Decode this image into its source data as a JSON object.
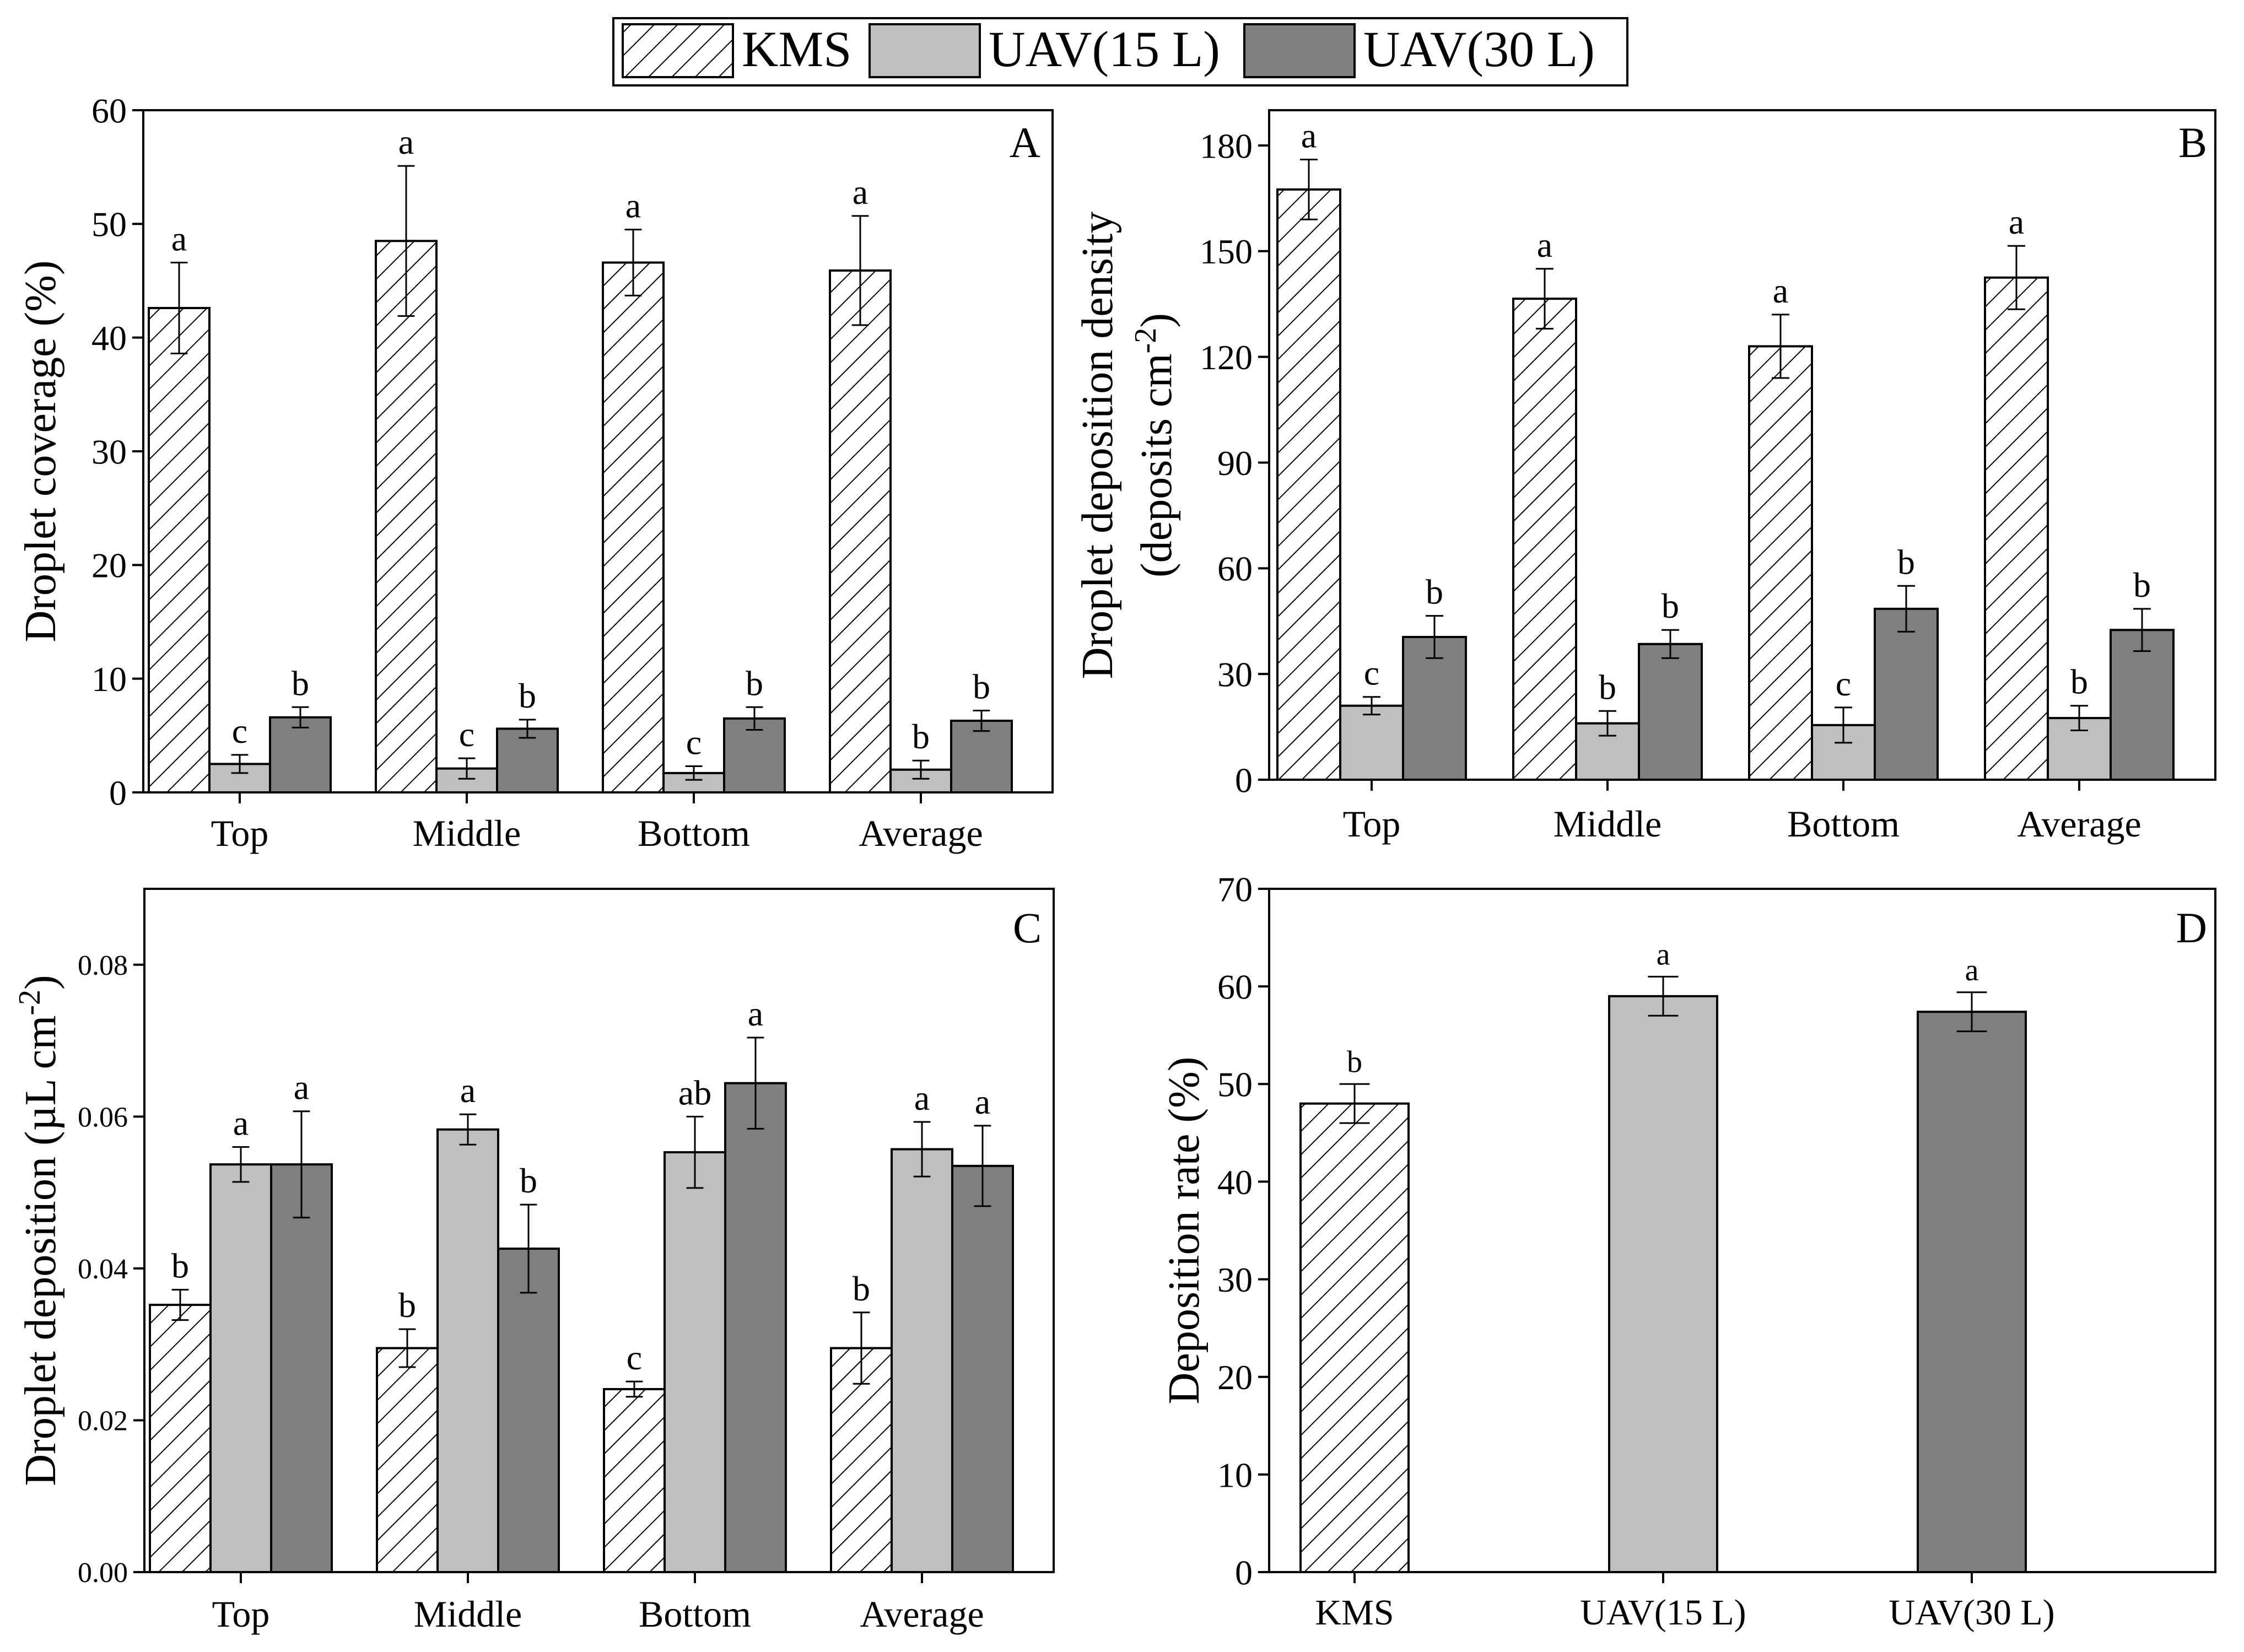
{
  "legend": {
    "entries": [
      {
        "name": "KMS",
        "pattern": "hatch",
        "color": "#ffffff"
      },
      {
        "name": "UAV(15 L)",
        "pattern": "solid",
        "color": "#bfbfbf"
      },
      {
        "name": "UAV(30 L)",
        "pattern": "solid",
        "color": "#7f7f7f"
      }
    ]
  },
  "colors": {
    "kms_fill": "#ffffff",
    "uav15": "#bfbfbf",
    "uav30": "#7f7f7f",
    "stroke": "#000000"
  },
  "chart_data": [
    {
      "panel": "A",
      "type": "bar",
      "ylabel": "Droplet coverage (%)",
      "ylim": [
        0,
        60
      ],
      "yticks": [
        0,
        10,
        20,
        30,
        40,
        50,
        60
      ],
      "ytick_labels": [
        "0",
        "10",
        "20",
        "30",
        "40",
        "50",
        "60"
      ],
      "categories": [
        "Top",
        "Middle",
        "Bottom",
        "Average"
      ],
      "series": [
        {
          "name": "KMS",
          "values": [
            42.6,
            48.5,
            46.6,
            45.9
          ],
          "errors": [
            4.0,
            6.6,
            2.9,
            4.8
          ],
          "letters": [
            "a",
            "a",
            "a",
            "a"
          ]
        },
        {
          "name": "UAV(15 L)",
          "values": [
            2.5,
            2.1,
            1.7,
            2.0
          ],
          "errors": [
            0.8,
            0.9,
            0.6,
            0.8
          ],
          "letters": [
            "c",
            "c",
            "c",
            "b"
          ]
        },
        {
          "name": "UAV(30 L)",
          "values": [
            6.6,
            5.6,
            6.5,
            6.3
          ],
          "errors": [
            0.9,
            0.8,
            1.0,
            0.9
          ],
          "letters": [
            "b",
            "b",
            "b",
            "b"
          ]
        }
      ]
    },
    {
      "panel": "B",
      "type": "bar",
      "ylabel_line1": "Droplet deposition density",
      "ylabel_line2": "(deposits cm",
      "ylabel_line2_sup": "-2",
      "ylabel_line2_end": ")",
      "ylim": [
        0,
        190
      ],
      "yticks": [
        0,
        30,
        60,
        90,
        120,
        150,
        180
      ],
      "ytick_labels": [
        "0",
        "30",
        "60",
        "90",
        "120",
        "150",
        "180"
      ],
      "categories": [
        "Top",
        "Middle",
        "Bottom",
        "Average"
      ],
      "series": [
        {
          "name": "KMS",
          "values": [
            167.5,
            136.5,
            123.0,
            142.5
          ],
          "errors": [
            8.5,
            8.5,
            9.0,
            9.0
          ],
          "letters": [
            "a",
            "a",
            "a",
            "a"
          ]
        },
        {
          "name": "UAV(15 L)",
          "values": [
            21.0,
            16.0,
            15.5,
            17.5
          ],
          "errors": [
            2.5,
            3.5,
            5.0,
            3.5
          ],
          "letters": [
            "c",
            "b",
            "c",
            "b"
          ]
        },
        {
          "name": "UAV(30 L)",
          "values": [
            40.5,
            38.5,
            48.5,
            42.5
          ],
          "errors": [
            6.0,
            4.0,
            6.5,
            6.0
          ],
          "letters": [
            "b",
            "b",
            "b",
            "b"
          ]
        }
      ]
    },
    {
      "panel": "C",
      "type": "bar",
      "ylabel": "Droplet deposition (µL cm",
      "ylabel_sup": "-2",
      "ylabel_end": ")",
      "ylim": [
        0,
        0.09
      ],
      "yticks": [
        0,
        0.02,
        0.04,
        0.06,
        0.08
      ],
      "ytick_labels": [
        "0.00",
        "0.02",
        "0.04",
        "0.06",
        "0.08"
      ],
      "categories": [
        "Top",
        "Middle",
        "Bottom",
        "Average"
      ],
      "series": [
        {
          "name": "KMS",
          "values": [
            0.0352,
            0.0295,
            0.0241,
            0.0295
          ],
          "errors": [
            0.002,
            0.0025,
            0.001,
            0.0047
          ],
          "letters": [
            "b",
            "b",
            "c",
            "b"
          ]
        },
        {
          "name": "UAV(15 L)",
          "values": [
            0.0537,
            0.0583,
            0.0553,
            0.0557
          ],
          "errors": [
            0.0023,
            0.002,
            0.0047,
            0.0036
          ],
          "letters": [
            "a",
            "a",
            "ab",
            "a"
          ]
        },
        {
          "name": "UAV(30 L)",
          "values": [
            0.0537,
            0.0426,
            0.0644,
            0.0535
          ],
          "errors": [
            0.007,
            0.0058,
            0.006,
            0.0053
          ],
          "letters": [
            "a",
            "b",
            "a",
            "a"
          ]
        }
      ]
    },
    {
      "panel": "D",
      "type": "bar",
      "ylabel": "Deposition rate (%)",
      "ylim": [
        0,
        70
      ],
      "yticks": [
        0,
        10,
        20,
        30,
        40,
        50,
        60,
        70
      ],
      "ytick_labels": [
        "0",
        "10",
        "20",
        "30",
        "40",
        "50",
        "60",
        "70"
      ],
      "categories": [
        "KMS",
        "UAV(15 L)",
        "UAV(30 L)"
      ],
      "values": [
        48.0,
        59.0,
        57.4
      ],
      "errors": [
        2.0,
        2.0,
        2.0
      ],
      "letters": [
        "b",
        "a",
        "a"
      ]
    }
  ]
}
